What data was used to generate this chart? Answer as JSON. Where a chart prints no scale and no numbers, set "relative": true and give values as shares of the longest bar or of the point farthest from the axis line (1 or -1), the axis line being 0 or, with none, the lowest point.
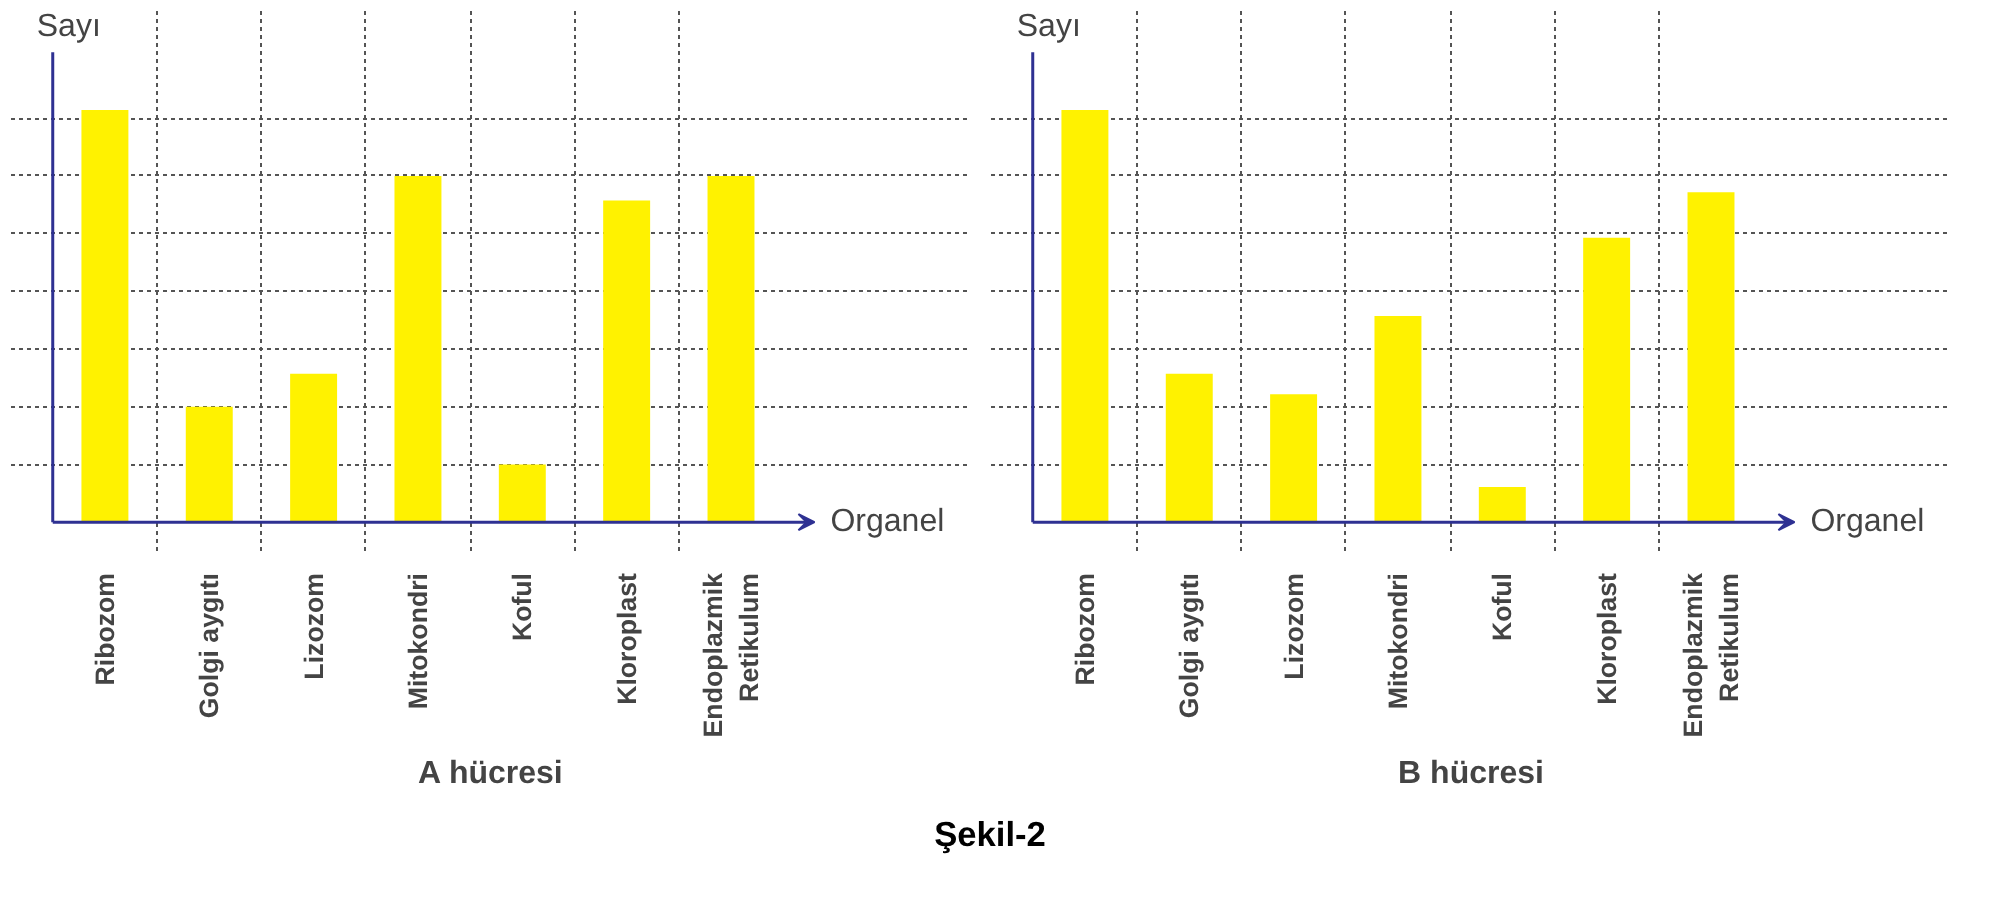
{
  "chart_data": [
    {
      "type": "bar",
      "title": "A hücresi",
      "xlabel": "Organel",
      "ylabel": "Sayı",
      "relative": true,
      "grid": true,
      "color": "#fff200",
      "categories": [
        "Ribozom",
        "Golgi aygıtı",
        "Lizozom",
        "Mitokondri",
        "Koful",
        "Kloroplast",
        "Endoplazmik\nRetikulum"
      ],
      "values": [
        1,
        0.28,
        0.36,
        0.84,
        0.14,
        0.78,
        0.84
      ],
      "annotations": [
        "Şekil-2"
      ]
    },
    {
      "type": "bar",
      "title": "B hücresi",
      "xlabel": "Organel",
      "ylabel": "Sayı",
      "relative": true,
      "grid": true,
      "color": "#fff200",
      "categories": [
        "Ribozom",
        "Golgi aygıtı",
        "Lizozom",
        "Mitokondri",
        "Koful",
        "Kloroplast",
        "Endoplazmik\nRetikulum"
      ],
      "values": [
        1,
        0.36,
        0.31,
        0.5,
        0.085,
        0.69,
        0.8
      ]
    }
  ]
}
